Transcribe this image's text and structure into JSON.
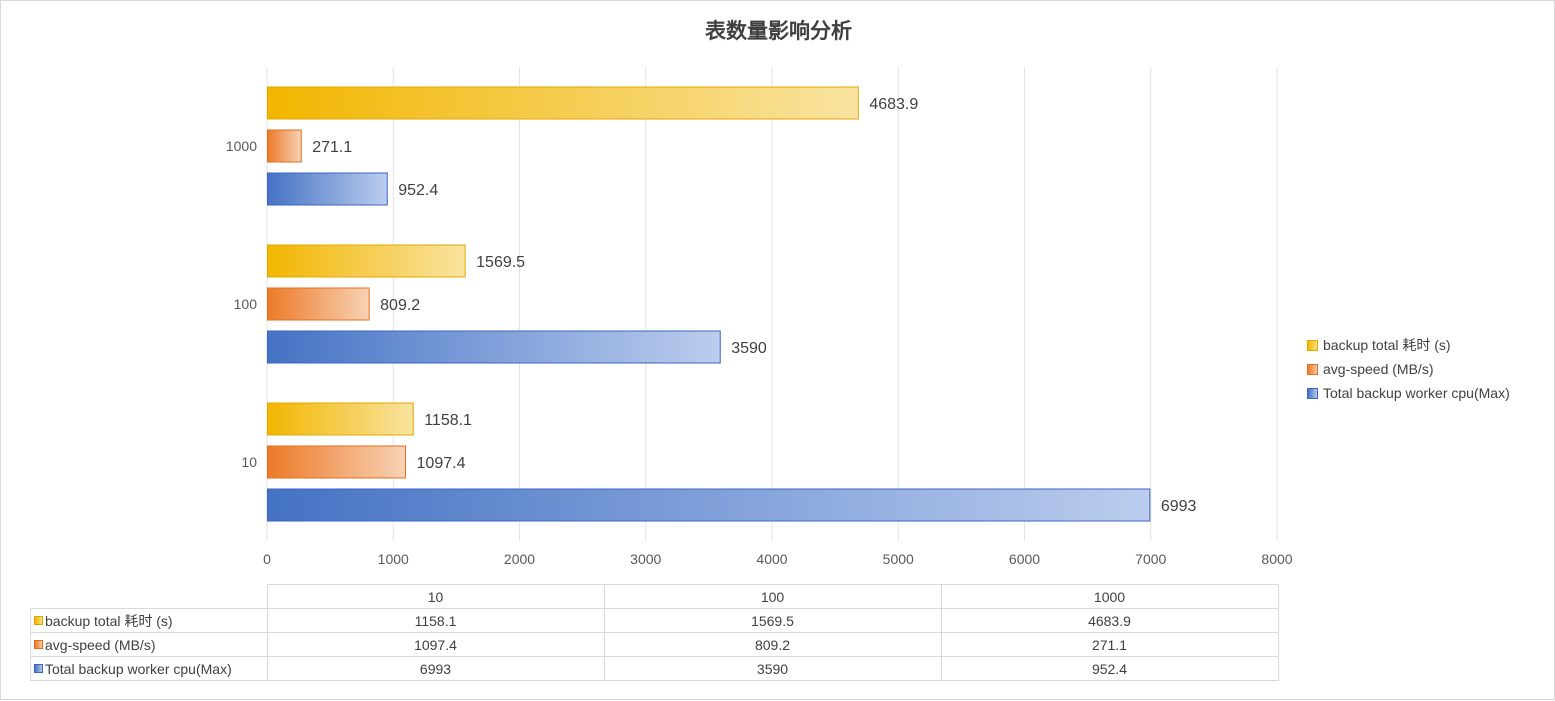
{
  "chart_data": {
    "type": "bar",
    "orientation": "horizontal",
    "title": "表数量影响分析",
    "categories": [
      "10",
      "100",
      "1000"
    ],
    "series": [
      {
        "name": "backup total 耗时 (s)",
        "values": [
          1158.1,
          1569.5,
          4683.9
        ],
        "color": "#f2b600",
        "value_labels": [
          "1158.1",
          "1569.5",
          "4683.9"
        ]
      },
      {
        "name": "avg-speed (MB/s)",
        "values": [
          1097.4,
          809.2,
          271.1
        ],
        "color": "#ec7a28",
        "value_labels": [
          "1097.4",
          "809.2",
          "271.1"
        ]
      },
      {
        "name": "Total backup worker cpu(Max)",
        "values": [
          6993,
          3590,
          952.4
        ],
        "color": "#4472c4",
        "value_labels": [
          "6993",
          "3590",
          "952.4"
        ]
      }
    ],
    "xlim": [
      0,
      8000
    ],
    "xticks": [
      "0",
      "1000",
      "2000",
      "3000",
      "4000",
      "5000",
      "6000",
      "7000",
      "8000"
    ],
    "grid": true,
    "legend_position": "right",
    "data_table": true
  }
}
